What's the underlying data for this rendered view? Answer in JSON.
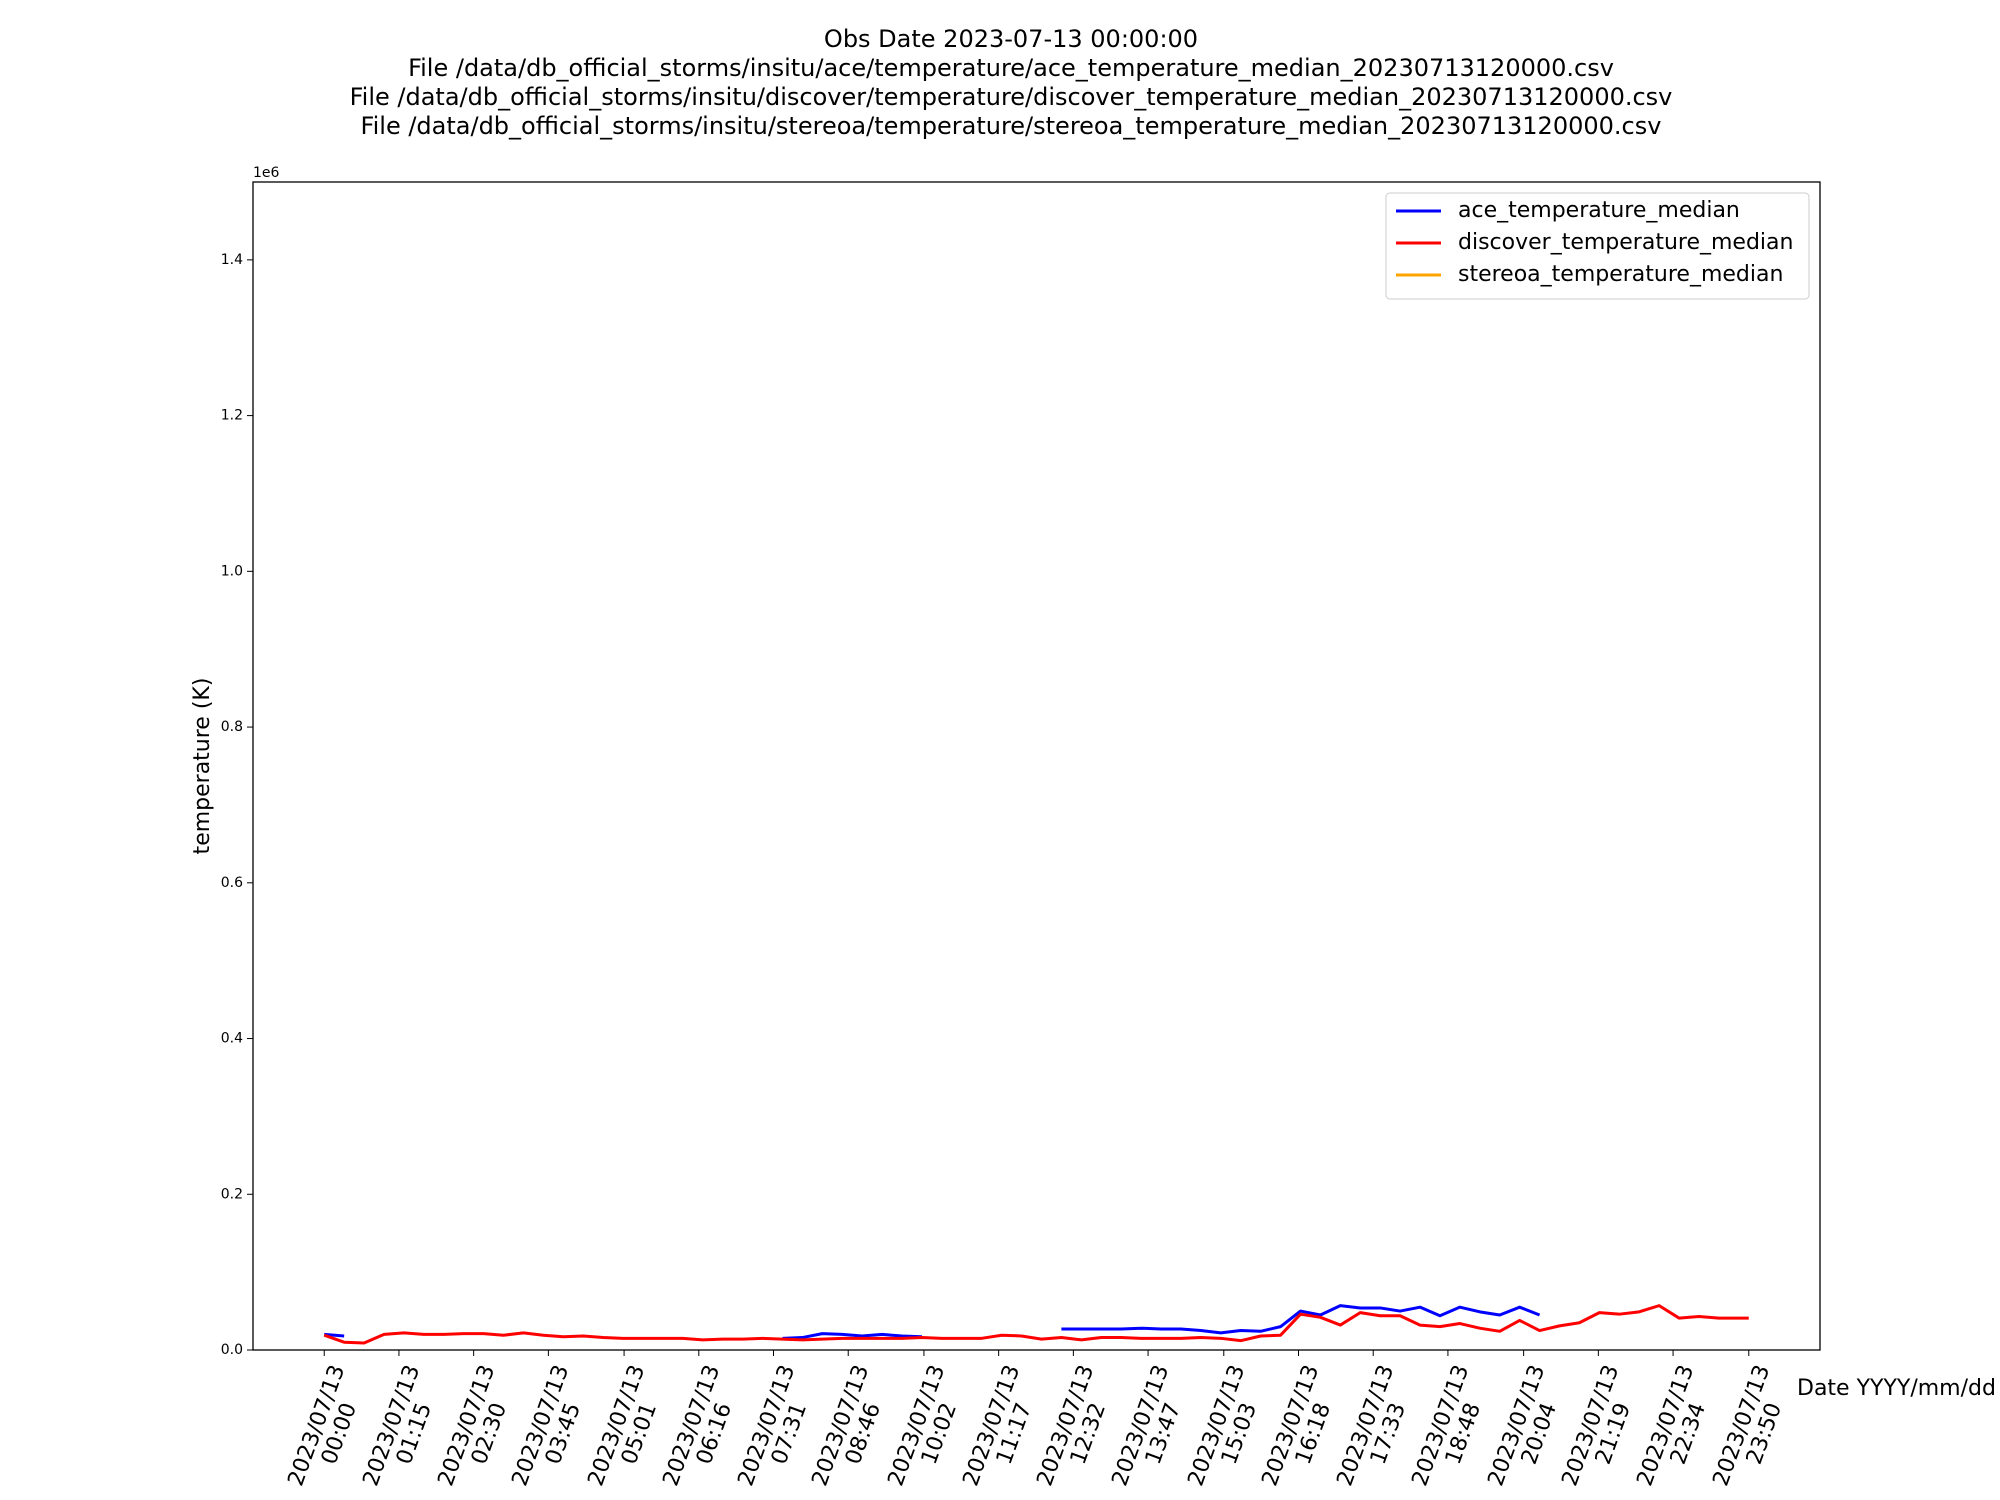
{
  "chart_data": {
    "type": "line",
    "title": [
      "Obs Date 2023-07-13 00:00:00",
      "File /data/db_official_storms/insitu/ace/temperature/ace_temperature_median_20230713120000.csv",
      "File /data/db_official_storms/insitu/discover/temperature/discover_temperature_median_20230713120000.csv",
      "File /data/db_official_storms/insitu/stereoa/temperature/stereoa_temperature_median_20230713120000.csv"
    ],
    "x_label": "Date YYYY/mm/dd",
    "y_label": "temperature (K)",
    "y_offset_text": "1e6",
    "x": [
      0,
      20,
      40,
      60,
      80,
      100,
      120,
      140,
      160,
      180,
      200,
      220,
      240,
      260,
      280,
      300,
      320,
      340,
      360,
      380,
      400,
      420,
      440,
      460,
      480,
      500,
      520,
      540,
      560,
      580,
      600,
      620,
      640,
      660,
      680,
      700,
      720,
      740,
      760,
      780,
      800,
      820,
      840,
      860,
      880,
      900,
      920,
      940,
      960,
      980,
      1000,
      1020,
      1040,
      1060,
      1080,
      1100,
      1120,
      1140,
      1160,
      1180,
      1200,
      1220,
      1240,
      1260,
      1280,
      1300,
      1320,
      1340,
      1360,
      1380,
      1400,
      1420,
      1430
    ],
    "series": [
      {
        "name": "ace_temperature_median",
        "color": "#0000ff",
        "values": [
          20000,
          18000,
          null,
          null,
          null,
          null,
          null,
          null,
          null,
          null,
          null,
          null,
          null,
          null,
          null,
          null,
          null,
          null,
          null,
          null,
          null,
          null,
          null,
          15000,
          16000,
          21000,
          20000,
          18000,
          20000,
          18000,
          17000,
          null,
          null,
          null,
          null,
          null,
          null,
          27000,
          27000,
          27000,
          27000,
          28000,
          27000,
          27000,
          25000,
          22000,
          25000,
          24000,
          30000,
          50000,
          45000,
          57000,
          54000,
          54000,
          50000,
          55000,
          44000,
          55000,
          49000,
          45000,
          55000,
          45000,
          null,
          null,
          null,
          null,
          null,
          null,
          null,
          null,
          null,
          null,
          null
        ]
      },
      {
        "name": "discover_temperature_median",
        "color": "#ff0000",
        "values": [
          19000,
          10000,
          9000,
          20000,
          22000,
          20000,
          20000,
          21000,
          21000,
          19000,
          22000,
          19000,
          17000,
          18000,
          16000,
          15000,
          15000,
          15000,
          15000,
          13000,
          14000,
          14000,
          15000,
          14000,
          13000,
          14000,
          15000,
          15000,
          15000,
          15000,
          16000,
          15000,
          15000,
          15000,
          19000,
          18000,
          14000,
          16000,
          13000,
          16000,
          16000,
          15000,
          15000,
          15000,
          16000,
          15000,
          12000,
          18000,
          19000,
          46000,
          42000,
          32000,
          48000,
          44000,
          44000,
          32000,
          30000,
          34000,
          28000,
          24000,
          38000,
          25000,
          31000,
          35000,
          48000,
          46000,
          49000,
          57000,
          41000,
          43000,
          41000,
          41000,
          41000
        ]
      },
      {
        "name": "stereoa_temperature_median",
        "color": "#ffa500",
        "values": [
          null,
          null,
          null,
          null,
          null,
          null,
          null,
          null,
          null,
          null,
          null,
          null,
          null,
          null,
          null,
          null,
          null,
          null,
          null,
          null,
          null,
          null,
          null,
          null,
          null,
          null,
          null,
          null,
          null,
          null,
          null,
          null,
          null,
          null,
          null,
          null,
          null,
          null,
          null,
          null,
          null,
          null,
          null,
          null,
          null,
          null,
          null,
          null,
          null,
          null,
          null,
          null,
          null,
          null,
          null,
          null,
          null,
          null,
          null,
          null,
          null,
          null,
          null,
          null,
          null,
          null,
          null,
          null,
          null,
          null,
          null,
          null,
          null
        ]
      }
    ],
    "xlim": [
      -71.5,
      1501.5
    ],
    "xticks": [
      {
        "value": 0,
        "label": "2023/07/13\n00:00"
      },
      {
        "value": 75,
        "label": "2023/07/13\n01:15"
      },
      {
        "value": 150,
        "label": "2023/07/13\n02:30"
      },
      {
        "value": 225,
        "label": "2023/07/13\n03:45"
      },
      {
        "value": 301,
        "label": "2023/07/13\n05:01"
      },
      {
        "value": 376,
        "label": "2023/07/13\n06:16"
      },
      {
        "value": 451,
        "label": "2023/07/13\n07:31"
      },
      {
        "value": 526,
        "label": "2023/07/13\n08:46"
      },
      {
        "value": 602,
        "label": "2023/07/13\n10:02"
      },
      {
        "value": 677,
        "label": "2023/07/13\n11:17"
      },
      {
        "value": 752,
        "label": "2023/07/13\n12:32"
      },
      {
        "value": 827,
        "label": "2023/07/13\n13:47"
      },
      {
        "value": 903,
        "label": "2023/07/13\n15:03"
      },
      {
        "value": 978,
        "label": "2023/07/13\n16:18"
      },
      {
        "value": 1053,
        "label": "2023/07/13\n17:33"
      },
      {
        "value": 1128,
        "label": "2023/07/13\n18:48"
      },
      {
        "value": 1204,
        "label": "2023/07/13\n20:04"
      },
      {
        "value": 1279,
        "label": "2023/07/13\n21:19"
      },
      {
        "value": 1354,
        "label": "2023/07/13\n22:34"
      },
      {
        "value": 1430,
        "label": "2023/07/13\n23:50"
      }
    ],
    "ylim": [
      0,
      1500000
    ],
    "yticks": [
      {
        "value": 0,
        "label": "0.0"
      },
      {
        "value": 200000,
        "label": "0.2"
      },
      {
        "value": 400000,
        "label": "0.4"
      },
      {
        "value": 600000,
        "label": "0.6"
      },
      {
        "value": 800000,
        "label": "0.8"
      },
      {
        "value": 1000000,
        "label": "1.0"
      },
      {
        "value": 1200000,
        "label": "1.2"
      },
      {
        "value": 1400000,
        "label": "1.4"
      }
    ],
    "grid": false,
    "legend": "upper right"
  }
}
